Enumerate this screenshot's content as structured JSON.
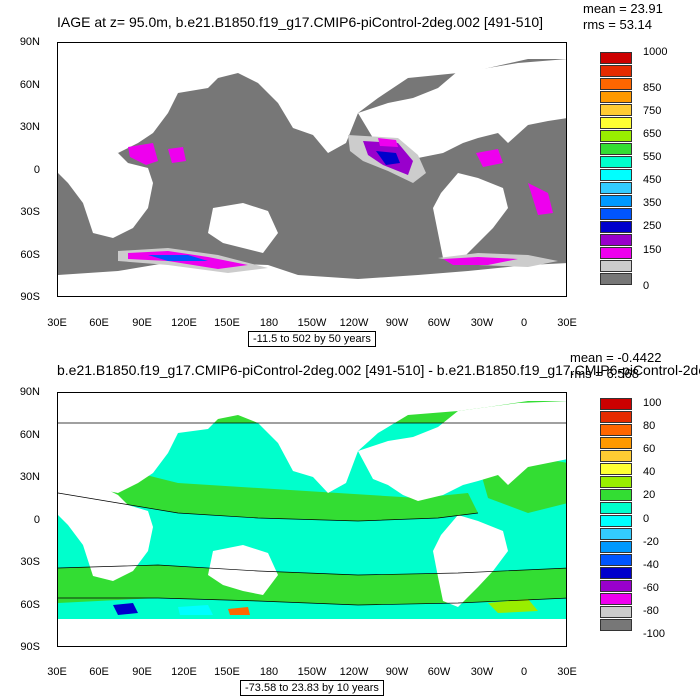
{
  "panels": [
    {
      "title": "IAGE at z=  95.0m, b.e21.B1850.f19_g17.CMIP6-piControl-2deg.002 [491-510]",
      "mean": "mean = 23.91",
      "rms": "rms = 53.14",
      "lat_ticks": [
        "90N",
        "60N",
        "30N",
        "0",
        "30S",
        "60S",
        "90S"
      ],
      "lon_ticks": [
        "30E",
        "60E",
        "90E",
        "120E",
        "150E",
        "180",
        "150W",
        "120W",
        "90W",
        "60W",
        "30W",
        "0",
        "30E"
      ],
      "range_label": "-11.5 to 502 by 50 years",
      "colorbar": {
        "labels": [
          "1000",
          "850",
          "750",
          "650",
          "550",
          "450",
          "350",
          "250",
          "150",
          "0"
        ],
        "colors": [
          "#cc0000",
          "#e62b00",
          "#ff6600",
          "#ff9900",
          "#ffcc33",
          "#ffff33",
          "#99ee00",
          "#33dd33",
          "#00ffcc",
          "#00ffff",
          "#33ccff",
          "#0099ff",
          "#0055ff",
          "#0000cc",
          "#9900cc",
          "#ee00ee",
          "#cccccc",
          "#777777"
        ]
      }
    },
    {
      "title": "b.e21.B1850.f19_g17.CMIP6-piControl-2deg.002 [491-510] - b.e21.B1850.f19_g17.CMIP6-piControl-2de",
      "mean": "mean = -0.4422",
      "rms": "rms = 6.568",
      "lat_ticks": [
        "90N",
        "60N",
        "30N",
        "0",
        "30S",
        "60S",
        "90S"
      ],
      "lon_ticks": [
        "30E",
        "60E",
        "90E",
        "120E",
        "150E",
        "180",
        "150W",
        "120W",
        "90W",
        "60W",
        "30W",
        "0",
        "30E"
      ],
      "range_label": "-73.58 to 23.83 by 10 years",
      "colorbar": {
        "labels": [
          "100",
          "80",
          "60",
          "40",
          "20",
          "0",
          "-20",
          "-40",
          "-60",
          "-80",
          "-100"
        ],
        "colors": [
          "#cc0000",
          "#e62b00",
          "#ff6600",
          "#ff9900",
          "#ffcc33",
          "#ffff33",
          "#99ee00",
          "#33dd33",
          "#00ffcc",
          "#00ffff",
          "#33ccff",
          "#0099ff",
          "#0055ff",
          "#0000cc",
          "#9900cc",
          "#ee00ee",
          "#cccccc",
          "#777777"
        ]
      }
    }
  ]
}
